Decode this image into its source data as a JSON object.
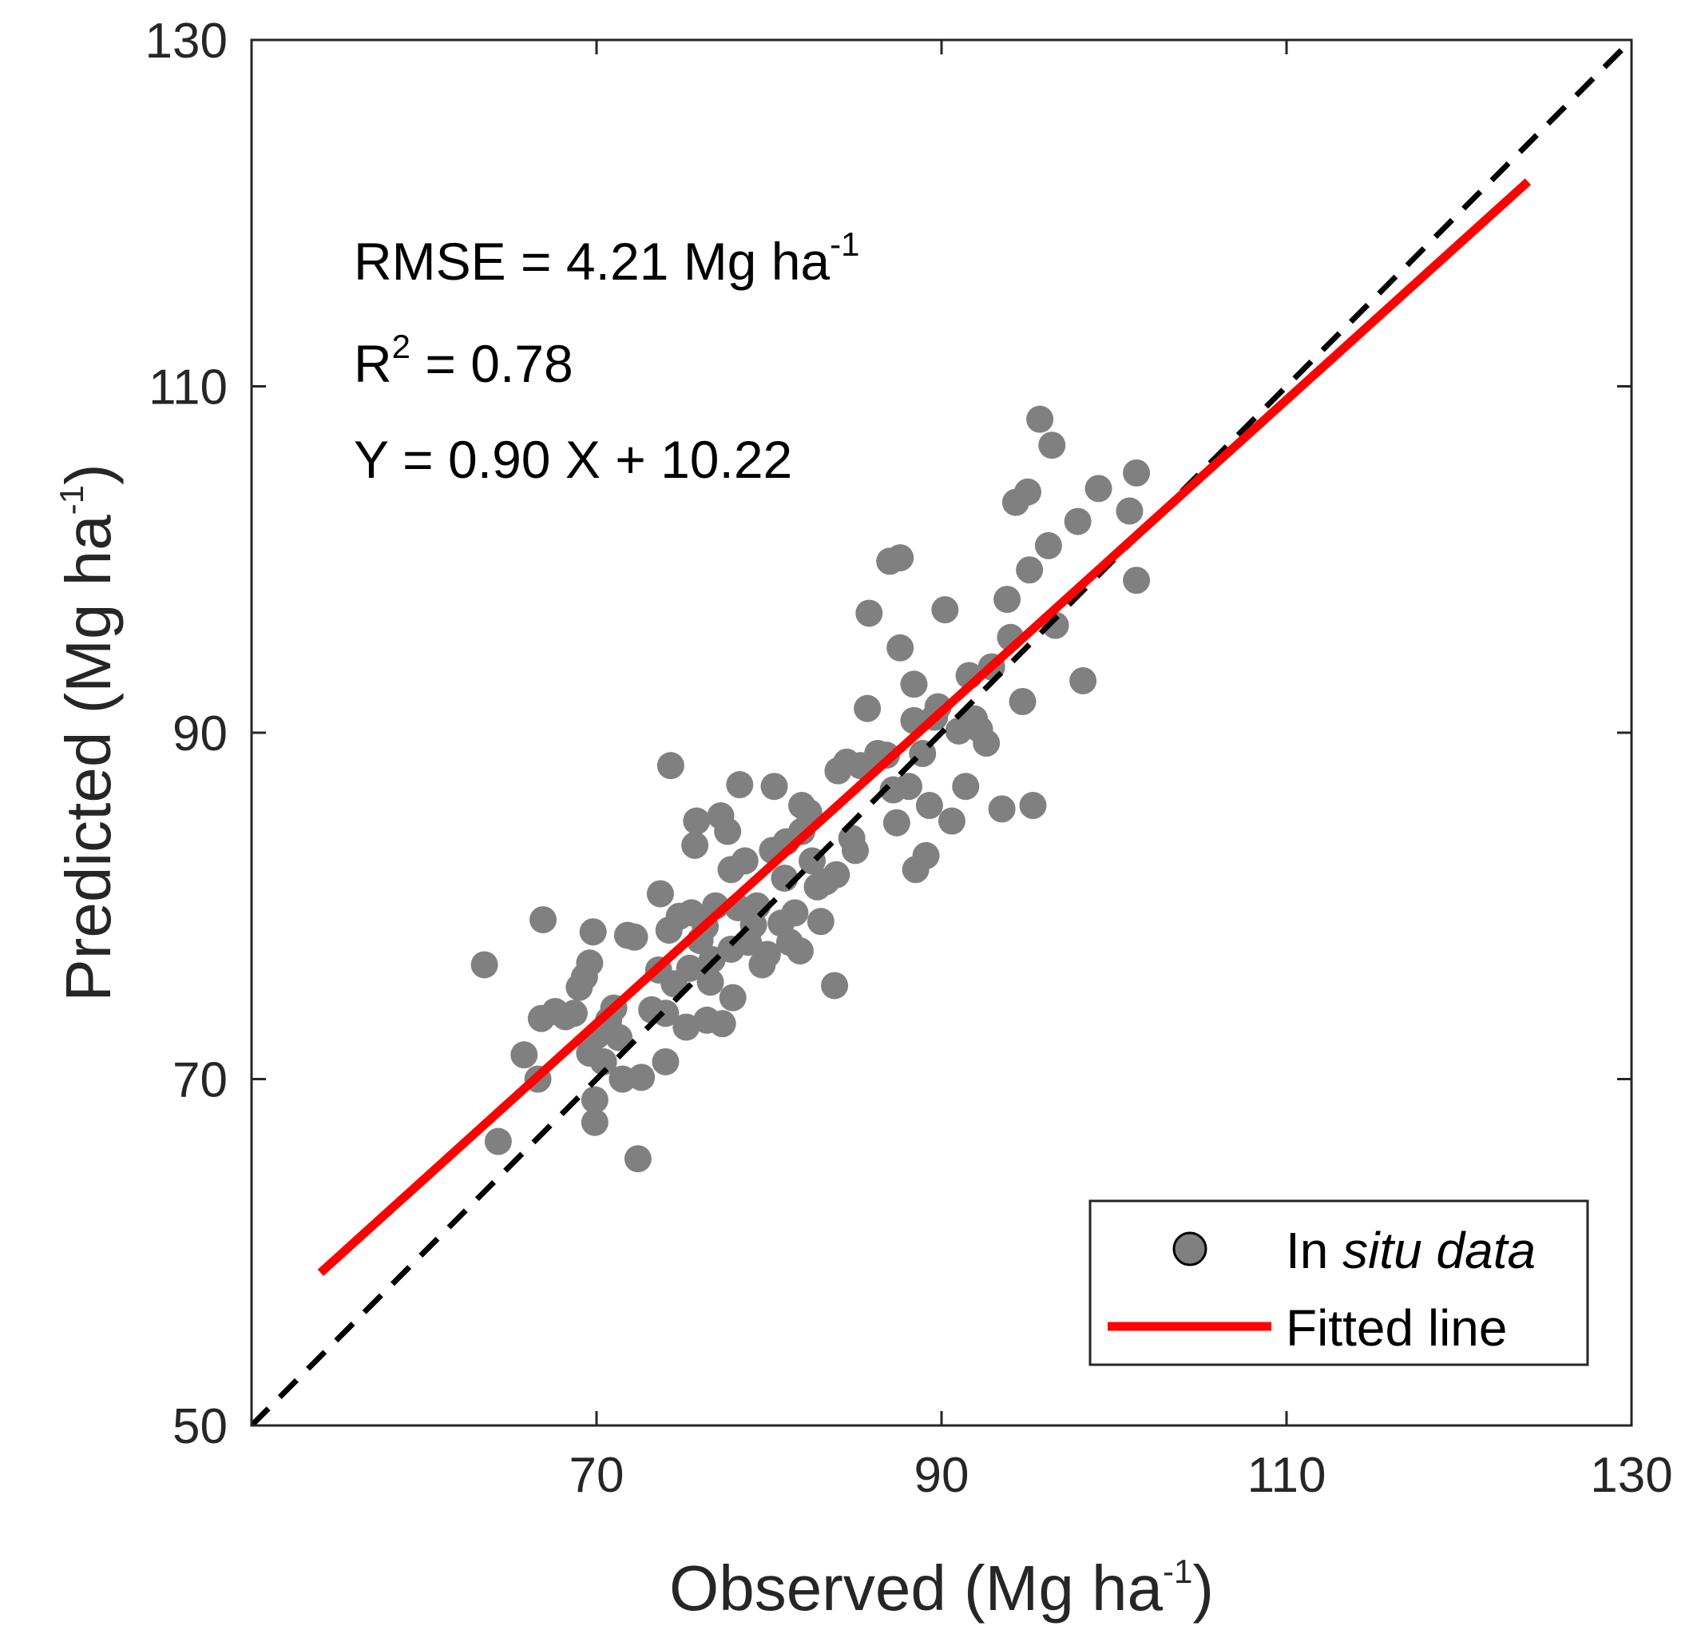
{
  "chart_data": {
    "type": "scatter",
    "xlabel": "Observed (Mg ha",
    "ylabel": "Predicted (Mg ha",
    "label_unit_exponent": "-1",
    "label_close": ")",
    "xlim": [
      50,
      130
    ],
    "ylim": [
      50,
      130
    ],
    "xticks": [
      70,
      90,
      110,
      130
    ],
    "yticks": [
      50,
      70,
      90,
      110,
      130
    ],
    "grid": false,
    "legend_position": "bottom-right",
    "annotations": {
      "rmse_text": "RMSE = 4.21 Mg ha",
      "rmse_exp": "-1",
      "r2_prefix": "R",
      "r2_exp": "2",
      "r2_value": " = 0.78",
      "equation": "Y = 0.90 X + 10.22"
    },
    "legend": {
      "scatter_label_prefix": "In ",
      "scatter_label_italic": "situ data",
      "fit_label": "Fitted line"
    },
    "colors": {
      "points": "#808080",
      "point_edge": "#6e6e6e",
      "fit_line": "#ff0000",
      "identity_line": "#000000",
      "axis": "#262626"
    },
    "fitted_line": {
      "slope": 0.9,
      "intercept": 10.22,
      "x_range": [
        54,
        124
      ]
    },
    "identity_line": {
      "x_range": [
        50,
        130
      ]
    },
    "series": [
      {
        "name": "In situ data",
        "points": [
          [
            63.5,
            76.6
          ],
          [
            64.3,
            66.4
          ],
          [
            65.8,
            71.4
          ],
          [
            66.6,
            70.0
          ],
          [
            66.8,
            73.5
          ],
          [
            66.9,
            79.2
          ],
          [
            67.6,
            73.9
          ],
          [
            68.2,
            73.6
          ],
          [
            68.7,
            73.8
          ],
          [
            69.0,
            75.3
          ],
          [
            69.3,
            75.9
          ],
          [
            69.6,
            76.7
          ],
          [
            69.8,
            78.5
          ],
          [
            70.0,
            72.5
          ],
          [
            69.6,
            71.5
          ],
          [
            69.9,
            68.8
          ],
          [
            69.9,
            67.5
          ],
          [
            70.4,
            71.0
          ],
          [
            70.7,
            73.4
          ],
          [
            71.0,
            74.1
          ],
          [
            71.3,
            72.4
          ],
          [
            71.5,
            70.0
          ],
          [
            71.8,
            78.3
          ],
          [
            72.2,
            78.2
          ],
          [
            72.6,
            70.1
          ],
          [
            72.4,
            65.4
          ],
          [
            73.2,
            74.0
          ],
          [
            73.6,
            76.3
          ],
          [
            73.7,
            80.7
          ],
          [
            74.0,
            71.0
          ],
          [
            74.0,
            73.8
          ],
          [
            74.2,
            78.6
          ],
          [
            74.5,
            75.5
          ],
          [
            74.8,
            79.4
          ],
          [
            74.3,
            88.1
          ],
          [
            75.2,
            73.0
          ],
          [
            75.4,
            76.4
          ],
          [
            75.5,
            79.6
          ],
          [
            75.7,
            83.5
          ],
          [
            75.8,
            84.9
          ],
          [
            76.0,
            78.0
          ],
          [
            76.3,
            78.8
          ],
          [
            76.4,
            73.4
          ],
          [
            76.6,
            75.6
          ],
          [
            76.7,
            76.9
          ],
          [
            76.9,
            80.0
          ],
          [
            77.2,
            85.2
          ],
          [
            77.3,
            73.2
          ],
          [
            77.6,
            84.3
          ],
          [
            77.8,
            77.5
          ],
          [
            77.8,
            82.1
          ],
          [
            77.9,
            74.7
          ],
          [
            78.2,
            79.9
          ],
          [
            78.3,
            87.0
          ],
          [
            78.6,
            82.6
          ],
          [
            78.8,
            77.9
          ],
          [
            79.1,
            78.9
          ],
          [
            79.3,
            80.0
          ],
          [
            79.6,
            76.6
          ],
          [
            79.9,
            77.2
          ],
          [
            80.2,
            83.2
          ],
          [
            80.3,
            86.9
          ],
          [
            80.7,
            79.0
          ],
          [
            80.9,
            81.6
          ],
          [
            81.0,
            83.7
          ],
          [
            81.2,
            77.9
          ],
          [
            81.5,
            79.6
          ],
          [
            81.8,
            77.4
          ],
          [
            81.9,
            84.3
          ],
          [
            81.9,
            85.8
          ],
          [
            82.3,
            85.4
          ],
          [
            82.5,
            82.6
          ],
          [
            82.8,
            81.1
          ],
          [
            83.0,
            79.1
          ],
          [
            83.3,
            81.4
          ],
          [
            83.8,
            75.4
          ],
          [
            83.9,
            81.8
          ],
          [
            84.0,
            87.8
          ],
          [
            84.5,
            88.3
          ],
          [
            84.8,
            83.9
          ],
          [
            85.0,
            83.2
          ],
          [
            85.3,
            88.1
          ],
          [
            85.7,
            91.4
          ],
          [
            85.8,
            96.9
          ],
          [
            86.3,
            88.8
          ],
          [
            86.8,
            88.7
          ],
          [
            87.0,
            99.9
          ],
          [
            87.2,
            86.7
          ],
          [
            87.4,
            84.8
          ],
          [
            87.6,
            100.1
          ],
          [
            87.6,
            94.9
          ],
          [
            88.1,
            86.9
          ],
          [
            88.4,
            92.8
          ],
          [
            88.4,
            90.7
          ],
          [
            88.5,
            82.1
          ],
          [
            88.9,
            88.8
          ],
          [
            89.1,
            82.9
          ],
          [
            89.3,
            85.8
          ],
          [
            89.6,
            90.9
          ],
          [
            89.8,
            91.5
          ],
          [
            90.2,
            97.1
          ],
          [
            90.6,
            84.9
          ],
          [
            91.0,
            90.1
          ],
          [
            91.4,
            86.9
          ],
          [
            91.6,
            93.3
          ],
          [
            91.9,
            90.8
          ],
          [
            92.2,
            90.2
          ],
          [
            92.6,
            89.4
          ],
          [
            92.9,
            93.8
          ],
          [
            93.5,
            85.6
          ],
          [
            93.8,
            97.7
          ],
          [
            94.0,
            95.5
          ],
          [
            94.3,
            103.3
          ],
          [
            94.7,
            91.8
          ],
          [
            95.0,
            103.9
          ],
          [
            95.1,
            99.4
          ],
          [
            95.3,
            85.8
          ],
          [
            95.7,
            108.1
          ],
          [
            96.2,
            100.8
          ],
          [
            96.4,
            106.6
          ],
          [
            96.6,
            96.2
          ],
          [
            97.9,
            102.2
          ],
          [
            98.2,
            93.0
          ],
          [
            99.1,
            104.1
          ],
          [
            100.9,
            102.8
          ],
          [
            101.3,
            98.8
          ],
          [
            101.3,
            105.0
          ]
        ]
      }
    ]
  }
}
